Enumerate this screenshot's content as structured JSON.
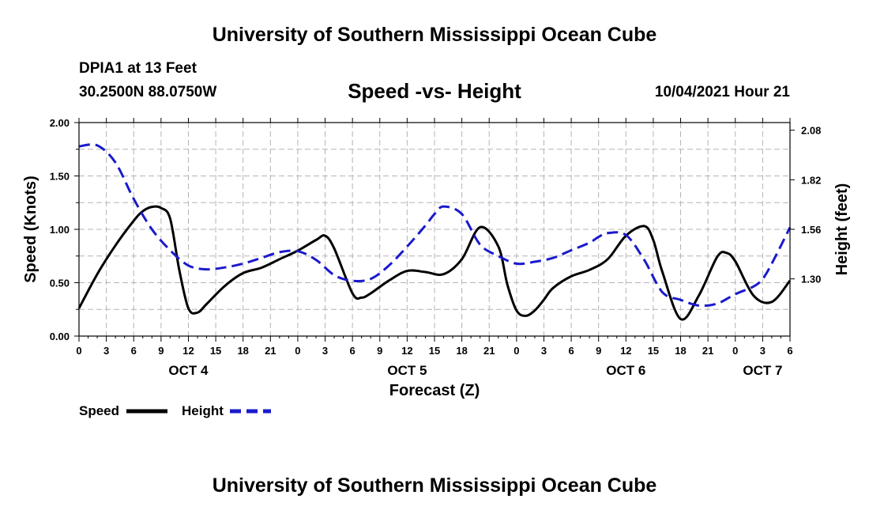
{
  "header": {
    "title": "University of Southern Mississippi Ocean Cube",
    "station": "DPIA1 at 13 Feet",
    "coordinates": "30.2500N  88.0750W",
    "chart_title": "Speed -vs- Height",
    "timestamp": "10/04/2021 Hour 21"
  },
  "footer": {
    "title": "University of Southern Mississippi Ocean Cube"
  },
  "colors": {
    "speed": "#000000",
    "height": "#1a1acc",
    "grid": "#b4b4b4"
  },
  "chart_data": {
    "type": "line",
    "title": "Speed -vs- Height",
    "xlabel": "Forecast (Z)",
    "ylabel": "Speed (Knots)",
    "y2label": "Height (feet)",
    "x_unit": "hours from OCT 4 00Z",
    "xlim": [
      0,
      78
    ],
    "ylim": [
      0.0,
      2.0
    ],
    "y2lim": [
      1.0,
      2.12
    ],
    "yticks": [
      "0.00",
      "0.50",
      "1.00",
      "1.50",
      "2.00"
    ],
    "yticks_values": [
      0,
      0.5,
      1.0,
      1.5,
      2.0
    ],
    "y2ticks": [
      "1.30",
      "1.56",
      "1.82",
      "2.08"
    ],
    "y2ticks_values": [
      1.3,
      1.56,
      1.82,
      2.08
    ],
    "xticks": [
      "0",
      "3",
      "6",
      "9",
      "12",
      "15",
      "18",
      "21",
      "0",
      "3",
      "6",
      "9",
      "12",
      "15",
      "18",
      "21",
      "0",
      "3",
      "6",
      "9",
      "12",
      "15",
      "18",
      "21",
      "0",
      "3",
      "6"
    ],
    "xticks_values": [
      0,
      3,
      6,
      9,
      12,
      15,
      18,
      21,
      24,
      27,
      30,
      33,
      36,
      39,
      42,
      45,
      48,
      51,
      54,
      57,
      60,
      63,
      66,
      69,
      72,
      75,
      78
    ],
    "day_labels": [
      {
        "label": "OCT 4",
        "x": 12
      },
      {
        "label": "OCT 5",
        "x": 36
      },
      {
        "label": "OCT 6",
        "x": 60
      },
      {
        "label": "OCT 7",
        "x": 75
      }
    ],
    "grid": true,
    "legend_position": "bottom-left",
    "series": [
      {
        "name": "Speed",
        "axis": "left",
        "style": "solid",
        "x": [
          0,
          2,
          4,
          6,
          7,
          8,
          9,
          10,
          11,
          12,
          13,
          14,
          16,
          18,
          20,
          22,
          24,
          26,
          27,
          28,
          30,
          31,
          32,
          34,
          36,
          38,
          40,
          42,
          44,
          46,
          47,
          48,
          49,
          50,
          51,
          52,
          54,
          56,
          58,
          60,
          62,
          63,
          64,
          66,
          68,
          70,
          71,
          72,
          74,
          76,
          78
        ],
        "values": [
          0.26,
          0.58,
          0.85,
          1.08,
          1.17,
          1.21,
          1.2,
          1.1,
          0.62,
          0.26,
          0.22,
          0.3,
          0.47,
          0.59,
          0.64,
          0.72,
          0.8,
          0.9,
          0.94,
          0.82,
          0.4,
          0.36,
          0.4,
          0.52,
          0.61,
          0.6,
          0.58,
          0.72,
          1.02,
          0.84,
          0.48,
          0.24,
          0.19,
          0.24,
          0.34,
          0.45,
          0.56,
          0.62,
          0.72,
          0.94,
          1.03,
          0.9,
          0.6,
          0.16,
          0.38,
          0.74,
          0.78,
          0.7,
          0.38,
          0.32,
          0.52
        ]
      },
      {
        "name": "Height",
        "axis": "right",
        "style": "dashed",
        "x": [
          0,
          2,
          4,
          6,
          8,
          10,
          12,
          14,
          16,
          18,
          20,
          22,
          24,
          26,
          28,
          30,
          32,
          34,
          36,
          38,
          39,
          40,
          42,
          44,
          46,
          48,
          50,
          52,
          54,
          56,
          57,
          58,
          60,
          62,
          64,
          66,
          68,
          70,
          72,
          74,
          75,
          76,
          78
        ],
        "values": [
          1.995,
          2.0,
          1.91,
          1.72,
          1.56,
          1.45,
          1.37,
          1.35,
          1.36,
          1.38,
          1.41,
          1.44,
          1.445,
          1.4,
          1.32,
          1.29,
          1.3,
          1.37,
          1.47,
          1.58,
          1.64,
          1.68,
          1.64,
          1.48,
          1.42,
          1.38,
          1.39,
          1.41,
          1.45,
          1.49,
          1.52,
          1.54,
          1.53,
          1.4,
          1.23,
          1.19,
          1.16,
          1.17,
          1.22,
          1.26,
          1.3,
          1.38,
          1.57
        ]
      }
    ]
  }
}
